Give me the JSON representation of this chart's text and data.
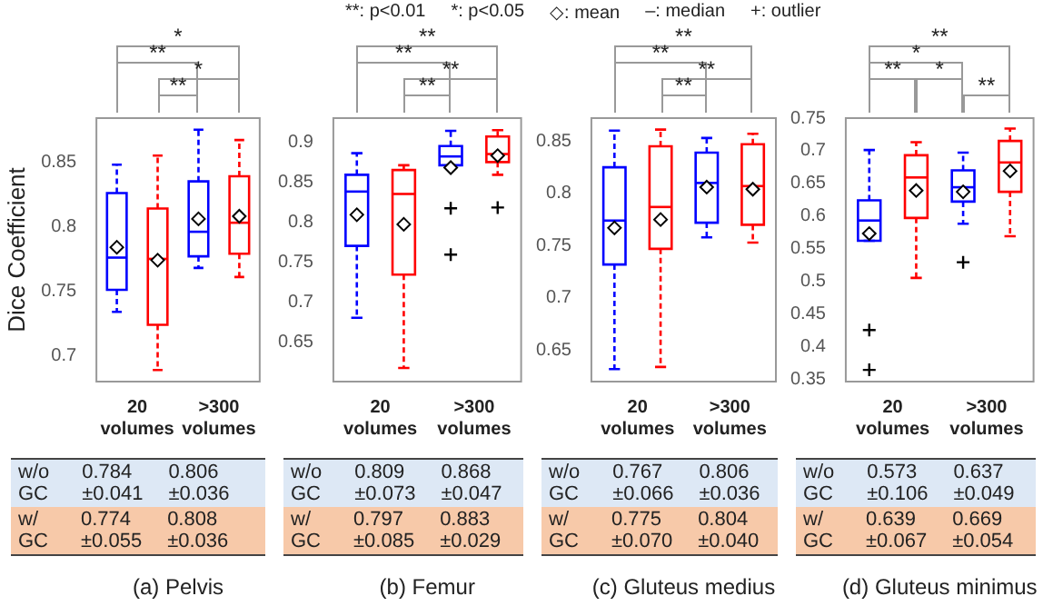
{
  "chart_data": [
    {
      "type": "box",
      "title": "(a) Pelvis",
      "ylabel": "Dice Coefficient",
      "categories": [
        "20 volumes",
        ">300 volumes"
      ],
      "series": [
        {
          "color": "#0000ff",
          "boxes": [
            {
              "low": 0.734,
              "q1": 0.751,
              "median": 0.776,
              "q3": 0.826,
              "high": 0.848,
              "mean": 0.784
            },
            {
              "low": 0.768,
              "q1": 0.777,
              "median": 0.796,
              "q3": 0.835,
              "high": 0.875,
              "mean": 0.806
            }
          ]
        },
        {
          "color": "#ff0000",
          "boxes": [
            {
              "low": 0.689,
              "q1": 0.724,
              "median": 0.775,
              "q3": 0.814,
              "high": 0.855,
              "mean": 0.774
            },
            {
              "low": 0.761,
              "q1": 0.779,
              "median": 0.803,
              "q3": 0.839,
              "high": 0.867,
              "mean": 0.808
            }
          ]
        }
      ],
      "ylim": [
        0.68,
        0.884
      ],
      "yticks": [
        0.7,
        0.75,
        0.8,
        0.85
      ],
      "annotations": [
        "*",
        "**",
        "*",
        "**",
        "w/o GC",
        "0.784 ±0.041",
        "0.806 ±0.036",
        "w/ GC",
        "0.774 ±0.055",
        "0.808 ±0.036",
        "**: p<0.01",
        "*: p<0.05",
        "◇: mean",
        "–: median",
        "+: outlier"
      ]
    },
    {
      "type": "box",
      "title": "(b) Femur",
      "categories": [
        "20 volumes",
        ">300 volumes"
      ],
      "series": [
        {
          "color": "#0000ff",
          "boxes": [
            {
              "low": 0.68,
              "q1": 0.77,
              "median": 0.838,
              "q3": 0.859,
              "high": 0.886,
              "mean": 0.809
            },
            {
              "low": 0.869,
              "q1": 0.871,
              "median": 0.882,
              "q3": 0.895,
              "high": 0.914,
              "mean": 0.868,
              "outliers": [
                0.817,
                0.759
              ]
            }
          ]
        },
        {
          "color": "#ff0000",
          "boxes": [
            {
              "low": 0.617,
              "q1": 0.734,
              "median": 0.835,
              "q3": 0.865,
              "high": 0.871,
              "mean": 0.797
            },
            {
              "low": 0.859,
              "q1": 0.875,
              "median": 0.885,
              "q3": 0.907,
              "high": 0.915,
              "mean": 0.883,
              "outliers": [
                0.818
              ]
            }
          ]
        }
      ],
      "ylim": [
        0.6,
        0.93
      ],
      "yticks": [
        0.65,
        0.7,
        0.75,
        0.8,
        0.85,
        0.9
      ],
      "annotations": [
        "**",
        "**",
        "**",
        "**",
        "w/o GC",
        "0.809 ±0.073",
        "0.868 ±0.047",
        "w/ GC",
        "0.797 ±0.085",
        "0.883 ±0.029"
      ]
    },
    {
      "type": "box",
      "title": "(c) Gluteus medius",
      "categories": [
        "20 volumes",
        ">300 volumes"
      ],
      "series": [
        {
          "color": "#0000ff",
          "boxes": [
            {
              "low": 0.632,
              "q1": 0.732,
              "median": 0.774,
              "q3": 0.825,
              "high": 0.86,
              "mean": 0.767
            },
            {
              "low": 0.758,
              "q1": 0.772,
              "median": 0.81,
              "q3": 0.839,
              "high": 0.853,
              "mean": 0.806
            }
          ]
        },
        {
          "color": "#ff0000",
          "boxes": [
            {
              "low": 0.634,
              "q1": 0.747,
              "median": 0.787,
              "q3": 0.845,
              "high": 0.861,
              "mean": 0.775
            },
            {
              "low": 0.753,
              "q1": 0.77,
              "median": 0.807,
              "q3": 0.847,
              "high": 0.857,
              "mean": 0.804
            }
          ]
        }
      ],
      "ylim": [
        0.62,
        0.872
      ],
      "yticks": [
        0.65,
        0.7,
        0.75,
        0.8,
        0.85
      ],
      "annotations": [
        "**",
        "**",
        "**",
        "**",
        "w/o GC",
        "0.767 ±0.066",
        "0.806 ±0.036",
        "w/ GC",
        "0.775 ±0.070",
        "0.804 ±0.040"
      ]
    },
    {
      "type": "box",
      "title": "(d) Gluteus minimus",
      "categories": [
        "20 volumes",
        ">300 volumes"
      ],
      "series": [
        {
          "color": "#0000ff",
          "boxes": [
            {
              "low": 0.562,
              "q1": 0.562,
              "median": 0.593,
              "q3": 0.624,
              "high": 0.701,
              "mean": 0.573,
              "outliers": [
                0.425,
                0.364
              ]
            },
            {
              "low": 0.588,
              "q1": 0.622,
              "median": 0.644,
              "q3": 0.67,
              "high": 0.697,
              "mean": 0.637,
              "outliers": [
                0.529
              ]
            }
          ]
        },
        {
          "color": "#ff0000",
          "boxes": [
            {
              "low": 0.505,
              "q1": 0.597,
              "median": 0.659,
              "q3": 0.693,
              "high": 0.713,
              "mean": 0.639
            },
            {
              "low": 0.569,
              "q1": 0.637,
              "median": 0.682,
              "q3": 0.715,
              "high": 0.734,
              "mean": 0.669
            }
          ]
        }
      ],
      "ylim": [
        0.346,
        0.75
      ],
      "yticks": [
        0.35,
        0.4,
        0.45,
        0.5,
        0.55,
        0.6,
        0.65,
        0.7,
        0.75
      ],
      "annotations": [
        "**",
        "*",
        "**",
        "*",
        "**",
        "w/o GC",
        "0.573 ±0.106",
        "0.637 ±0.049",
        "w/ GC",
        "0.639 ±0.067",
        "0.669 ±0.054"
      ]
    }
  ]
}
